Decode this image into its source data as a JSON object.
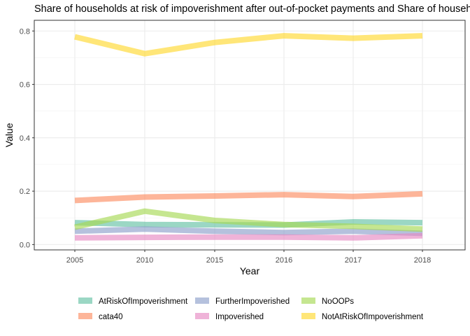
{
  "chart_data": {
    "type": "line",
    "title": "Share of households at risk of impoverishment after out-of-pocket payments and Share of households",
    "xlabel": "Year",
    "ylabel": "Value",
    "categories": [
      "2005",
      "2010",
      "2015",
      "2016",
      "2017",
      "2018"
    ],
    "ylim": [
      -0.02,
      0.84
    ],
    "yticks": [
      "0.0",
      "0.2",
      "0.4",
      "0.6",
      "0.8"
    ],
    "grid": true,
    "legend_position": "bottom",
    "series": [
      {
        "name": "AtRiskOfImpoverishment",
        "color": "#66c2a5",
        "values": [
          0.082,
          0.075,
          0.074,
          0.073,
          0.085,
          0.082
        ]
      },
      {
        "name": "cata40",
        "color": "#fc8d62",
        "values": [
          0.165,
          0.178,
          0.182,
          0.187,
          0.18,
          0.19
        ]
      },
      {
        "name": "FurtherImpoverished",
        "color": "#8da0cb",
        "values": [
          0.05,
          0.058,
          0.05,
          0.045,
          0.05,
          0.042
        ]
      },
      {
        "name": "Impoverished",
        "color": "#e78ac3",
        "values": [
          0.025,
          0.027,
          0.028,
          0.028,
          0.025,
          0.033
        ]
      },
      {
        "name": "NoOOPs",
        "color": "#a6d854",
        "values": [
          0.065,
          0.125,
          0.09,
          0.075,
          0.068,
          0.058
        ]
      },
      {
        "name": "NotAtRiskOfImpoverishment",
        "color": "#ffd92f",
        "values": [
          0.778,
          0.715,
          0.757,
          0.782,
          0.773,
          0.782
        ]
      }
    ]
  }
}
